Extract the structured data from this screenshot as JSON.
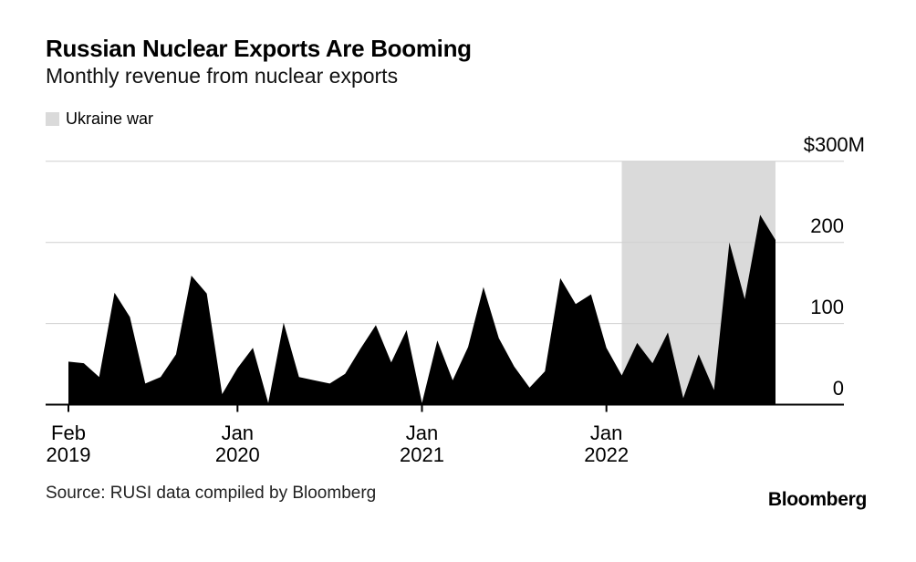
{
  "header": {
    "title": "Russian Nuclear Exports Are Booming",
    "subtitle": "Monthly revenue from nuclear exports"
  },
  "legend": {
    "items": [
      {
        "label": "Ukraine war",
        "swatch_color": "#dadada"
      }
    ]
  },
  "footer": {
    "source": "Source: RUSI data compiled by Bloomberg",
    "brand": "Bloomberg"
  },
  "colors": {
    "area": "#000000",
    "band": "#dadada",
    "gridline": "#cfcfcf",
    "axis": "#000000",
    "tick": "#000000"
  },
  "chart_data": {
    "type": "area",
    "title": "Russian Nuclear Exports Are Booming",
    "subtitle": "Monthly revenue from nuclear exports",
    "unit": "USD millions per month",
    "ylabel": "",
    "xlabel": "",
    "ylim": [
      0,
      300
    ],
    "grid": true,
    "legend_position": "top-left",
    "area_color": "#000000",
    "band": {
      "label": "Ukraine war",
      "color": "#dadada",
      "start": "Feb 2022",
      "end": "Dec 2022"
    },
    "x": [
      "Feb 2019",
      "Mar 2019",
      "Apr 2019",
      "May 2019",
      "Jun 2019",
      "Jul 2019",
      "Aug 2019",
      "Sep 2019",
      "Oct 2019",
      "Nov 2019",
      "Dec 2019",
      "Jan 2020",
      "Feb 2020",
      "Mar 2020",
      "Apr 2020",
      "May 2020",
      "Jun 2020",
      "Jul 2020",
      "Aug 2020",
      "Sep 2020",
      "Oct 2020",
      "Nov 2020",
      "Dec 2020",
      "Jan 2021",
      "Feb 2021",
      "Mar 2021",
      "Apr 2021",
      "May 2021",
      "Jun 2021",
      "Jul 2021",
      "Aug 2021",
      "Sep 2021",
      "Oct 2021",
      "Nov 2021",
      "Dec 2021",
      "Jan 2022",
      "Feb 2022",
      "Mar 2022",
      "Apr 2022",
      "May 2022",
      "Jun 2022",
      "Jul 2022",
      "Aug 2022",
      "Sep 2022",
      "Oct 2022",
      "Nov 2022",
      "Dec 2022"
    ],
    "values": [
      53,
      51,
      34,
      138,
      108,
      26,
      34,
      62,
      159,
      137,
      13,
      45,
      70,
      2,
      101,
      34,
      30,
      26,
      38,
      69,
      98,
      52,
      92,
      2,
      79,
      30,
      71,
      145,
      82,
      47,
      21,
      41,
      156,
      124,
      136,
      70,
      36,
      76,
      51,
      89,
      8,
      62,
      18,
      200,
      130,
      234,
      203
    ],
    "y_ticks": [
      {
        "value": 300,
        "label": "$300M"
      },
      {
        "value": 200,
        "label": "200"
      },
      {
        "value": 100,
        "label": "100"
      },
      {
        "value": 0,
        "label": "0"
      }
    ],
    "x_ticks": [
      {
        "month": "Feb 2019",
        "line1": "Feb",
        "line2": "2019"
      },
      {
        "month": "Jan 2020",
        "line1": "Jan",
        "line2": "2020"
      },
      {
        "month": "Jan 2021",
        "line1": "Jan",
        "line2": "2021"
      },
      {
        "month": "Jan 2022",
        "line1": "Jan",
        "line2": "2022"
      }
    ]
  }
}
